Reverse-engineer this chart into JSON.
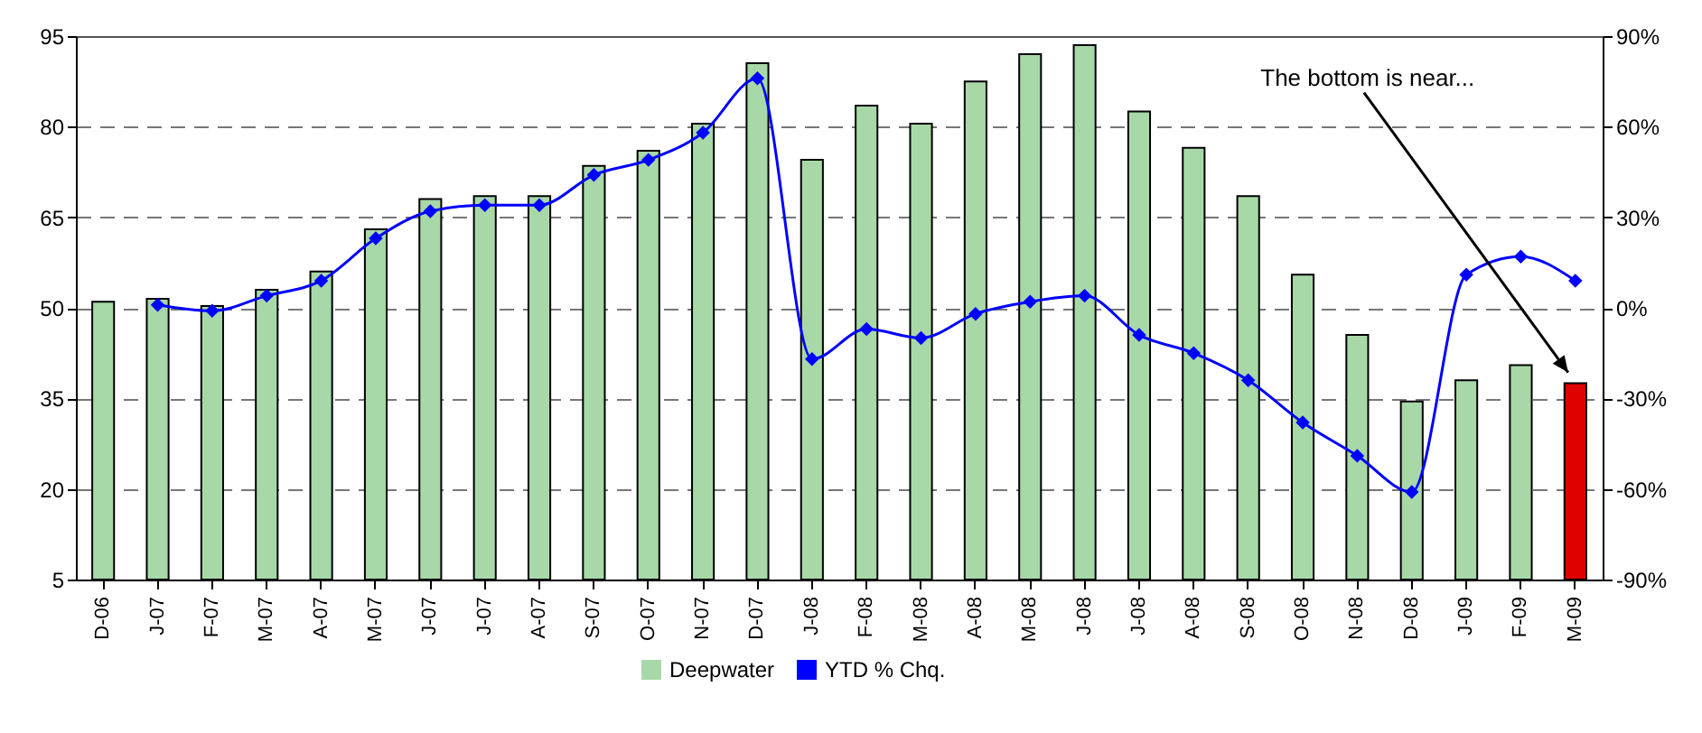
{
  "chart_data": {
    "type": "bar",
    "categories": [
      "D-06",
      "J-07",
      "F-07",
      "M-07",
      "A-07",
      "M-07",
      "J-07",
      "J-07",
      "A-07",
      "S-07",
      "O-07",
      "N-07",
      "D-07",
      "J-08",
      "F-08",
      "M-08",
      "A-08",
      "M-08",
      "J-08",
      "J-08",
      "A-08",
      "S-08",
      "O-08",
      "N-08",
      "D-08",
      "J-09",
      "F-09",
      "M-09"
    ],
    "series": [
      {
        "name": "Deepwater",
        "color": "#a8d8a8",
        "colors": [
          "#a8d8a8",
          "#a8d8a8",
          "#a8d8a8",
          "#a8d8a8",
          "#a8d8a8",
          "#a8d8a8",
          "#a8d8a8",
          "#a8d8a8",
          "#a8d8a8",
          "#a8d8a8",
          "#a8d8a8",
          "#a8d8a8",
          "#a8d8a8",
          "#a8d8a8",
          "#a8d8a8",
          "#a8d8a8",
          "#a8d8a8",
          "#a8d8a8",
          "#a8d8a8",
          "#a8d8a8",
          "#a8d8a8",
          "#a8d8a8",
          "#a8d8a8",
          "#a8d8a8",
          "#a8d8a8",
          "#a8d8a8",
          "#a8d8a8",
          "#e00000"
        ],
        "values": [
          51,
          51.5,
          50.3,
          53,
          56,
          63,
          68,
          68.5,
          68.5,
          73.5,
          76,
          80.5,
          90.5,
          74.5,
          83.5,
          80.5,
          87.5,
          92,
          93.5,
          82.5,
          76.5,
          68.5,
          55.5,
          45.5,
          34.5,
          38,
          40.5,
          37.5
        ]
      },
      {
        "name": "YTD % Chq.",
        "type": "line",
        "axis": "y2",
        "color": "#0000ff",
        "marker": "diamond",
        "values": [
          null,
          1,
          -1,
          4,
          9,
          23,
          32,
          34,
          34,
          44,
          49,
          58,
          76,
          -17,
          -7,
          -10,
          -2,
          2,
          4,
          -9,
          -15,
          -24,
          -38,
          -49,
          -61,
          11,
          17,
          9
        ]
      }
    ],
    "ylim": [
      5,
      95
    ],
    "yticks": [
      5,
      20,
      35,
      50,
      65,
      80,
      95
    ],
    "y2lim": [
      -90,
      90
    ],
    "y2ticks": [
      {
        "value": -90,
        "label": "-90%"
      },
      {
        "value": -60,
        "label": "-60%"
      },
      {
        "value": -30,
        "label": "-30%"
      },
      {
        "value": 0,
        "label": "0%"
      },
      {
        "value": 30,
        "label": "30%"
      },
      {
        "value": 60,
        "label": "60%"
      },
      {
        "value": 90,
        "label": "90%"
      }
    ],
    "grid": "y",
    "legend": "bottom",
    "annotations": [
      {
        "text": "The bottom is near...",
        "x": "M-09",
        "y": 37.5
      }
    ]
  }
}
